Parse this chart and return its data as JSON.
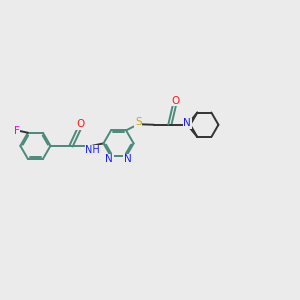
{
  "bg_color": "#ebebeb",
  "bond_color": "#4a8a7a",
  "dark_bond": "#333333",
  "bond_width": 1.4,
  "atom_colors": {
    "N": "#1a1aff",
    "O": "#ff1a1a",
    "S": "#ccaa00",
    "F": "#ff00cc",
    "C": "#4a8a7a"
  },
  "fontsize": 7.5
}
